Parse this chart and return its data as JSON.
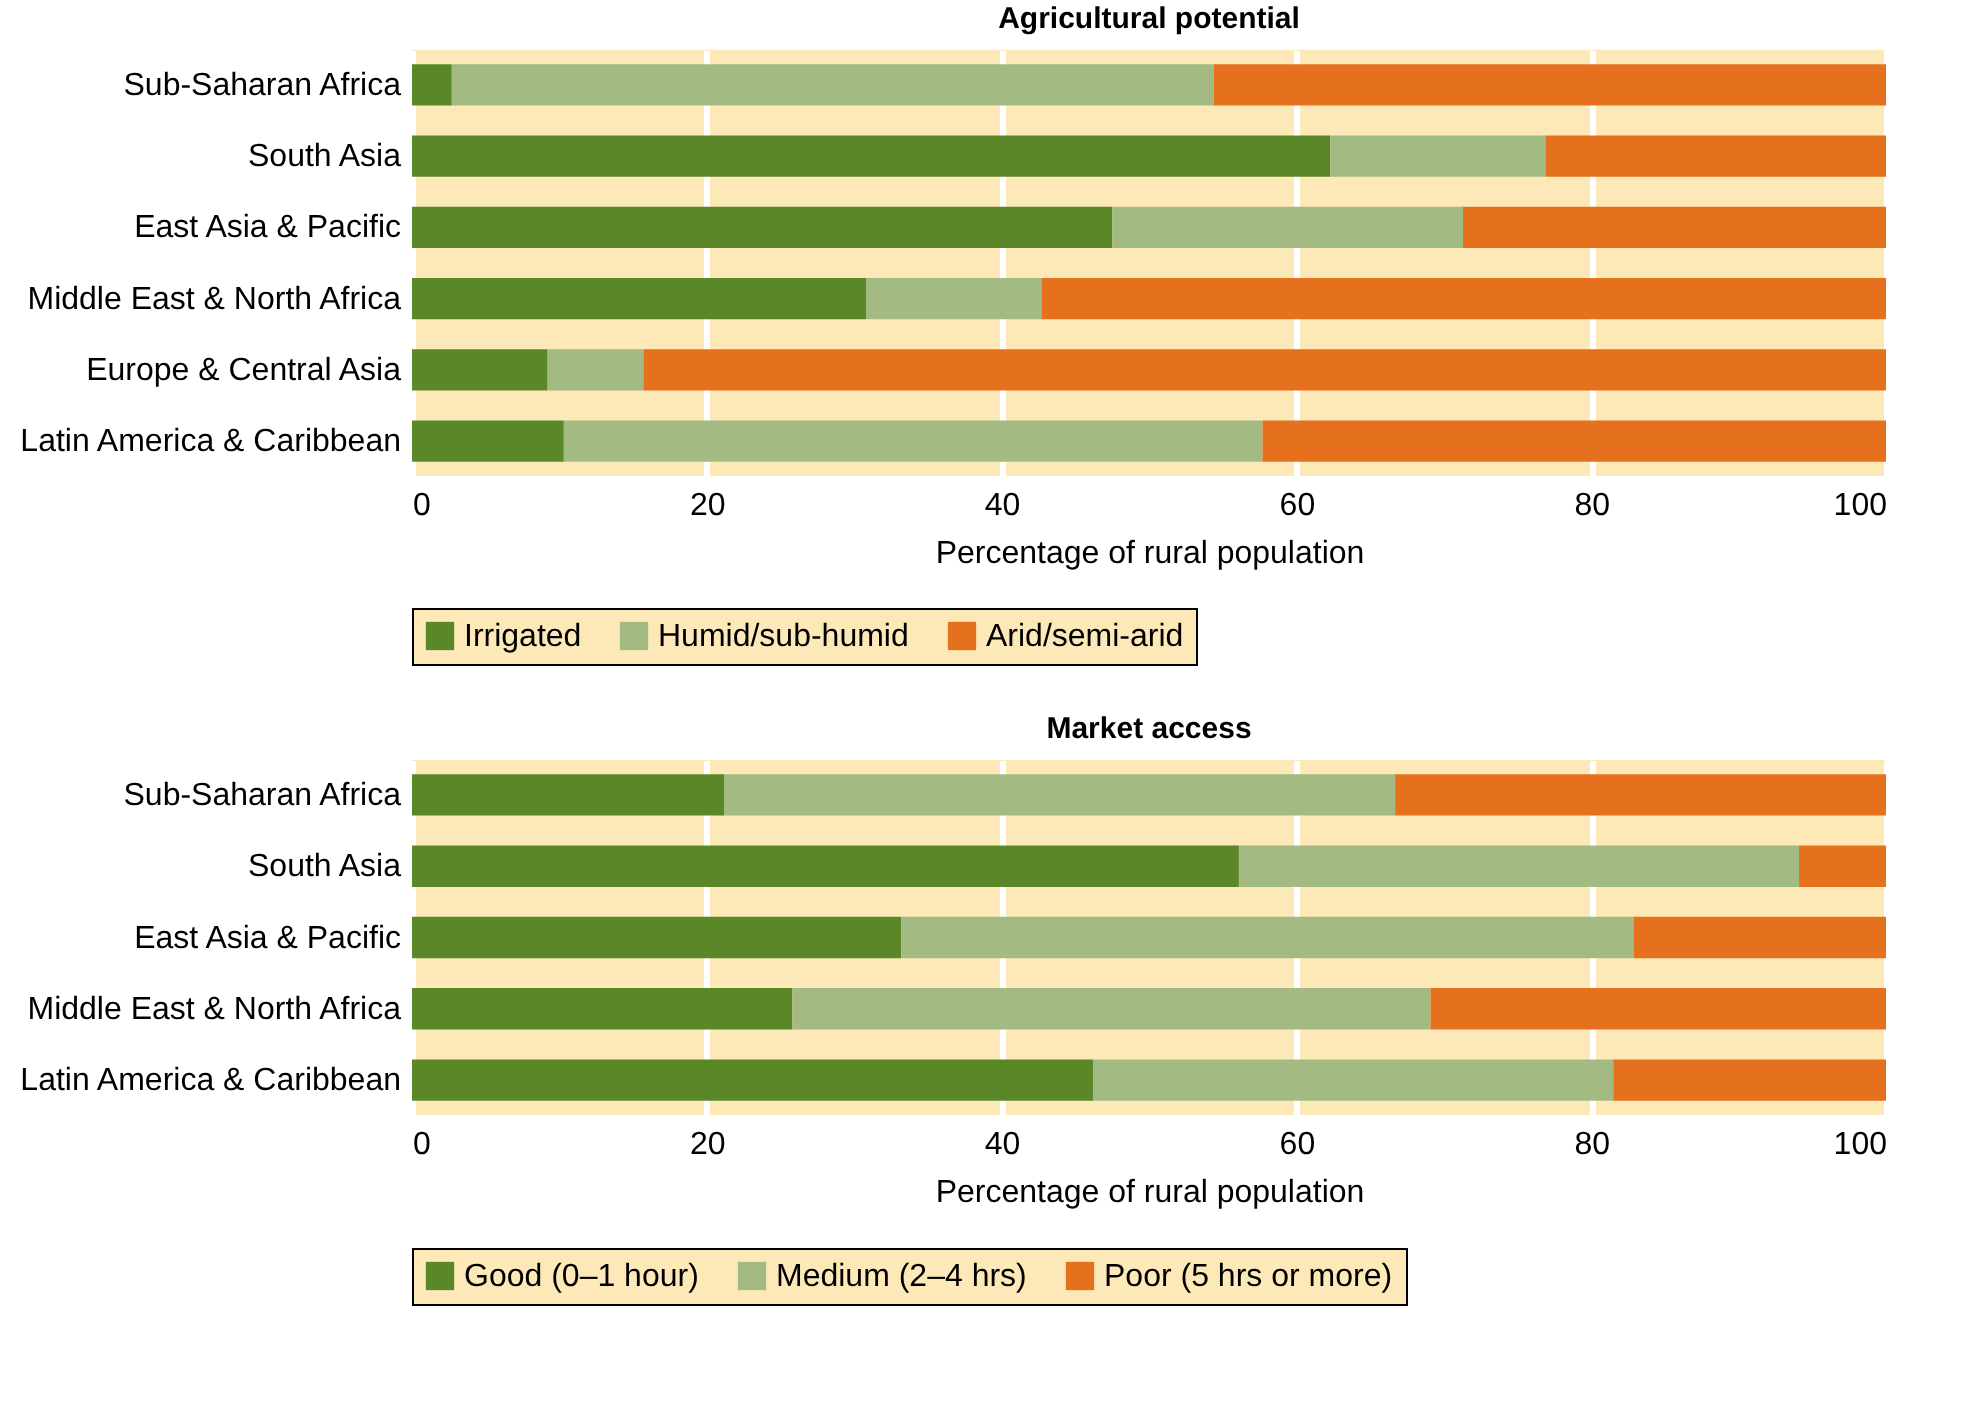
{
  "chart_data": [
    {
      "type": "bar",
      "title": "Agricultural potential",
      "xlabel": "Percentage of rural population",
      "orientation": "horizontal",
      "stacked": true,
      "categories": [
        "Sub-Saharan Africa",
        "South Asia",
        "East Asia & Pacific",
        "Middle East & North Africa",
        "Europe & Central Asia",
        "Latin America & Caribbean"
      ],
      "series": [
        {
          "name": "Irrigated",
          "color": "#5a8728",
          "values": [
            2.7,
            62.3,
            47.5,
            30.8,
            9.2,
            10.3
          ]
        },
        {
          "name": "Humid/sub-humid",
          "color": "#a3ba82",
          "values": [
            51.7,
            14.6,
            23.8,
            11.9,
            6.5,
            47.4
          ]
        },
        {
          "name": "Arid/semi-arid",
          "color": "#e5701e",
          "values": [
            45.6,
            23.1,
            28.7,
            57.3,
            84.3,
            42.3
          ]
        }
      ],
      "xlim": [
        0,
        100
      ],
      "xticks": [
        0,
        20,
        40,
        60,
        80,
        100
      ],
      "grid": "x",
      "legend": "bottom"
    },
    {
      "type": "bar",
      "title": "Market access",
      "xlabel": "Percentage of rural population",
      "orientation": "horizontal",
      "stacked": true,
      "categories": [
        "Sub-Saharan Africa",
        "South Asia",
        "East Asia & Pacific",
        "Middle East & North Africa",
        "Latin America & Caribbean"
      ],
      "series": [
        {
          "name": "Good (0–1 hour)",
          "color": "#5a8728",
          "values": [
            21.2,
            56.1,
            33.2,
            25.8,
            46.2
          ]
        },
        {
          "name": "Medium (2–4 hrs)",
          "color": "#a3ba82",
          "values": [
            45.5,
            38.0,
            49.7,
            43.3,
            35.3
          ]
        },
        {
          "name": "Poor (5 hrs or more)",
          "color": "#e5701e",
          "values": [
            33.3,
            5.9,
            17.1,
            30.9,
            18.5
          ]
        }
      ],
      "xlim": [
        0,
        100
      ],
      "xticks": [
        0,
        20,
        40,
        60,
        80,
        100
      ],
      "grid": "x",
      "legend": "bottom"
    }
  ]
}
